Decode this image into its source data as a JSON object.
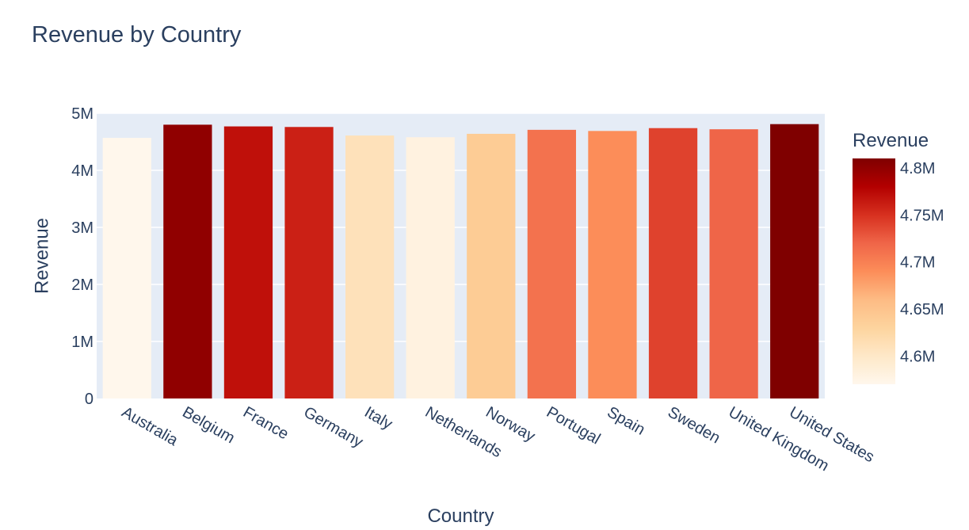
{
  "chart_data": {
    "type": "bar",
    "title": "Revenue by Country",
    "xlabel": "Country",
    "ylabel": "Revenue",
    "categories": [
      "Australia",
      "Belgium",
      "France",
      "Germany",
      "Italy",
      "Netherlands",
      "Norway",
      "Portugal",
      "Spain",
      "Sweden",
      "United Kingdom",
      "United States"
    ],
    "values": [
      4570000,
      4800000,
      4770000,
      4760000,
      4610000,
      4580000,
      4640000,
      4710000,
      4690000,
      4740000,
      4720000,
      4810000
    ],
    "ylim": [
      0,
      5000000
    ],
    "y_ticks": [
      0,
      1000000,
      2000000,
      3000000,
      4000000,
      5000000
    ],
    "y_tick_labels": [
      "0",
      "1M",
      "2M",
      "3M",
      "4M",
      "5M"
    ],
    "grid": true,
    "colorbar": {
      "title": "Revenue",
      "range": [
        4570000,
        4810000
      ],
      "ticks": [
        4600000,
        4650000,
        4700000,
        4750000,
        4800000
      ],
      "tick_labels": [
        "4.6M",
        "4.65M",
        "4.7M",
        "4.75M",
        "4.8M"
      ],
      "colorscale": [
        "#fff7ec",
        "#fee8c8",
        "#fdd49e",
        "#fdbb84",
        "#fc8d59",
        "#ef6548",
        "#d7301f",
        "#b30000",
        "#7f0000"
      ]
    },
    "plot_background": "#e5ecf6"
  }
}
